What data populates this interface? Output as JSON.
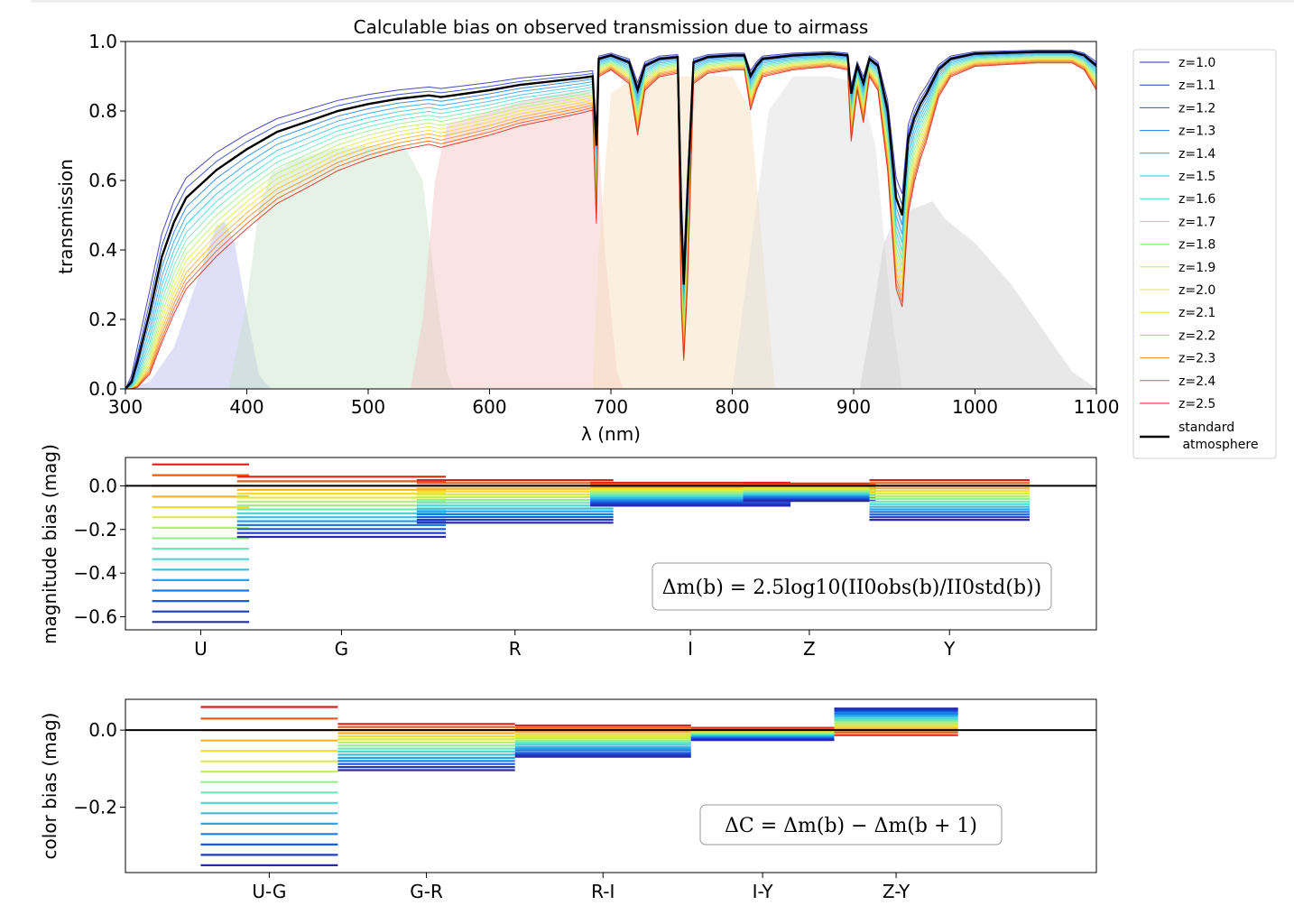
{
  "chart_data": [
    {
      "type": "area",
      "title": "Calculable bias on observed transmission due to airmass",
      "xlabel": "λ (nm)",
      "ylabel": "transmission",
      "xlim": [
        300,
        1100
      ],
      "ylim": [
        0.0,
        1.0
      ],
      "xticks": [
        "300",
        "400",
        "500",
        "600",
        "700",
        "800",
        "900",
        "1000",
        "1100"
      ],
      "yticks": [
        "0.0",
        "0.2",
        "0.4",
        "0.6",
        "0.8",
        "1.0"
      ],
      "grid": false,
      "legend_position": "outside-right",
      "filters": [
        {
          "band": "U",
          "color": "#b9b9f0",
          "points": [
            [
              300,
              0
            ],
            [
              320,
              0.02
            ],
            [
              340,
              0.12
            ],
            [
              360,
              0.32
            ],
            [
              375,
              0.47
            ],
            [
              382,
              0.48
            ],
            [
              390,
              0.42
            ],
            [
              400,
              0.22
            ],
            [
              410,
              0.04
            ],
            [
              420,
              0
            ]
          ]
        },
        {
          "band": "G",
          "color": "#c6e2c6",
          "points": [
            [
              385,
              0
            ],
            [
              400,
              0.25
            ],
            [
              410,
              0.52
            ],
            [
              420,
              0.62
            ],
            [
              440,
              0.66
            ],
            [
              470,
              0.69
            ],
            [
              500,
              0.7
            ],
            [
              530,
              0.7
            ],
            [
              545,
              0.6
            ],
            [
              555,
              0.3
            ],
            [
              565,
              0.05
            ],
            [
              570,
              0
            ]
          ]
        },
        {
          "band": "R",
          "color": "#f5c0c0",
          "points": [
            [
              535,
              0
            ],
            [
              545,
              0.2
            ],
            [
              555,
              0.6
            ],
            [
              565,
              0.76
            ],
            [
              600,
              0.8
            ],
            [
              640,
              0.84
            ],
            [
              680,
              0.86
            ],
            [
              688,
              0.83
            ],
            [
              695,
              0.4
            ],
            [
              705,
              0.05
            ],
            [
              710,
              0
            ]
          ]
        },
        {
          "band": "I",
          "color": "#f7ddb9",
          "points": [
            [
              685,
              0
            ],
            [
              690,
              0.4
            ],
            [
              700,
              0.85
            ],
            [
              720,
              0.9
            ],
            [
              760,
              0.9
            ],
            [
              800,
              0.9
            ],
            [
              815,
              0.8
            ],
            [
              825,
              0.4
            ],
            [
              835,
              0
            ]
          ]
        },
        {
          "band": "Z",
          "color": "#dcdcdc",
          "points": [
            [
              800,
              0
            ],
            [
              815,
              0.4
            ],
            [
              830,
              0.8
            ],
            [
              850,
              0.9
            ],
            [
              880,
              0.9
            ],
            [
              905,
              0.88
            ],
            [
              918,
              0.7
            ],
            [
              930,
              0.25
            ],
            [
              940,
              0
            ]
          ]
        },
        {
          "band": "Y",
          "color": "#cccccc",
          "points": [
            [
              905,
              0
            ],
            [
              915,
              0.2
            ],
            [
              925,
              0.42
            ],
            [
              935,
              0.5
            ],
            [
              950,
              0.52
            ],
            [
              965,
              0.54
            ],
            [
              975,
              0.49
            ],
            [
              1000,
              0.42
            ],
            [
              1030,
              0.3
            ],
            [
              1060,
              0.15
            ],
            [
              1080,
              0.05
            ],
            [
              1100,
              0
            ]
          ]
        }
      ],
      "series": [
        {
          "name": "z=1.0",
          "color": "#2a2aa8"
        },
        {
          "name": "z=1.1",
          "color": "#1c3cc8"
        },
        {
          "name": "z=1.2",
          "color": "#1a5ae0"
        },
        {
          "name": "z=1.3",
          "color": "#1e7ae6"
        },
        {
          "name": "z=1.4",
          "color": "#2a9ee8"
        },
        {
          "name": "z=1.5",
          "color": "#36c0e6"
        },
        {
          "name": "z=1.6",
          "color": "#4ad8d4"
        },
        {
          "name": "z=1.7",
          "color": "#6ee6b6"
        },
        {
          "name": "z=1.8",
          "color": "#96ee8e"
        },
        {
          "name": "z=1.9",
          "color": "#baee66"
        },
        {
          "name": "z=2.0",
          "color": "#dcec46"
        },
        {
          "name": "z=2.1",
          "color": "#f6dc30"
        },
        {
          "name": "z=2.2",
          "color": "#f8b426"
        },
        {
          "name": "z=2.3",
          "color": "#f48820"
        },
        {
          "name": "z=2.4",
          "color": "#ea5a1a"
        },
        {
          "name": "z=2.5",
          "color": "#d82416"
        },
        {
          "name": "standard\n atmosphere",
          "color": "#000000"
        }
      ],
      "atmosphere": {
        "standard_airmass": 1.2,
        "base": [
          [
            300,
            0.0
          ],
          [
            305,
            0.02
          ],
          [
            310,
            0.08
          ],
          [
            320,
            0.22
          ],
          [
            330,
            0.38
          ],
          [
            340,
            0.48
          ],
          [
            350,
            0.55
          ],
          [
            375,
            0.63
          ],
          [
            400,
            0.69
          ],
          [
            425,
            0.74
          ],
          [
            450,
            0.77
          ],
          [
            475,
            0.8
          ],
          [
            500,
            0.82
          ],
          [
            525,
            0.835
          ],
          [
            550,
            0.845
          ],
          [
            560,
            0.84
          ],
          [
            570,
            0.845
          ],
          [
            600,
            0.86
          ],
          [
            625,
            0.875
          ],
          [
            650,
            0.885
          ],
          [
            675,
            0.895
          ],
          [
            685,
            0.9
          ],
          [
            688,
            0.7
          ],
          [
            690,
            0.95
          ],
          [
            700,
            0.96
          ],
          [
            715,
            0.94
          ],
          [
            722,
            0.86
          ],
          [
            728,
            0.93
          ],
          [
            740,
            0.95
          ],
          [
            755,
            0.955
          ],
          [
            758,
            0.5
          ],
          [
            760,
            0.3
          ],
          [
            763,
            0.55
          ],
          [
            768,
            0.94
          ],
          [
            780,
            0.955
          ],
          [
            800,
            0.96
          ],
          [
            810,
            0.96
          ],
          [
            815,
            0.9
          ],
          [
            820,
            0.93
          ],
          [
            825,
            0.95
          ],
          [
            850,
            0.96
          ],
          [
            880,
            0.965
          ],
          [
            895,
            0.96
          ],
          [
            898,
            0.85
          ],
          [
            903,
            0.93
          ],
          [
            908,
            0.88
          ],
          [
            913,
            0.95
          ],
          [
            920,
            0.93
          ],
          [
            928,
            0.8
          ],
          [
            935,
            0.55
          ],
          [
            940,
            0.5
          ],
          [
            945,
            0.72
          ],
          [
            950,
            0.78
          ],
          [
            955,
            0.82
          ],
          [
            960,
            0.85
          ],
          [
            970,
            0.92
          ],
          [
            980,
            0.95
          ],
          [
            1000,
            0.965
          ],
          [
            1050,
            0.97
          ],
          [
            1080,
            0.97
          ],
          [
            1090,
            0.96
          ],
          [
            1100,
            0.93
          ]
        ]
      }
    },
    {
      "type": "bar",
      "ylabel": "magnitude bias (mag)",
      "ylim": [
        -0.66,
        0.13
      ],
      "yticks": [
        "0.0",
        "−0.2",
        "−0.4",
        "−0.6"
      ],
      "categories": [
        "U",
        "G",
        "R",
        "I",
        "Z",
        "Y"
      ],
      "annotation": "Δm(b) = 2.5log10(II0obs(b)/II0std(b))",
      "bands": [
        {
          "band": "U",
          "xrange": [
            322,
            402
          ],
          "values": [
            0.098,
            0.049,
            0.0,
            -0.049,
            -0.098,
            -0.144,
            -0.192,
            -0.24,
            -0.288,
            -0.336,
            -0.384,
            -0.432,
            -0.48,
            -0.528,
            -0.576,
            -0.624
          ]
        },
        {
          "band": "G",
          "xrange": [
            392,
            564
          ],
          "values": [
            0.042,
            0.021,
            0.0,
            -0.018,
            -0.036,
            -0.054,
            -0.072,
            -0.09,
            -0.108,
            -0.126,
            -0.144,
            -0.162,
            -0.18,
            -0.198,
            -0.216,
            -0.234
          ]
        },
        {
          "band": "R",
          "xrange": [
            540,
            702
          ],
          "values": [
            0.026,
            0.013,
            0.0,
            -0.013,
            -0.026,
            -0.039,
            -0.052,
            -0.065,
            -0.078,
            -0.091,
            -0.104,
            -0.117,
            -0.13,
            -0.143,
            -0.156,
            -0.169
          ]
        },
        {
          "band": "I",
          "xrange": [
            683,
            848
          ],
          "values": [
            0.014,
            0.007,
            0.0,
            -0.007,
            -0.014,
            -0.021,
            -0.028,
            -0.035,
            -0.042,
            -0.049,
            -0.056,
            -0.063,
            -0.07,
            -0.077,
            -0.084,
            -0.091
          ]
        },
        {
          "band": "Z",
          "xrange": [
            809,
            918
          ],
          "values": [
            0.011,
            0.005,
            0.0,
            -0.005,
            -0.011,
            -0.016,
            -0.021,
            -0.027,
            -0.032,
            -0.037,
            -0.043,
            -0.048,
            -0.053,
            -0.059,
            -0.064,
            -0.069
          ]
        },
        {
          "band": "Y",
          "xrange": [
            913,
            1045
          ],
          "values": [
            0.026,
            0.013,
            0.0,
            -0.012,
            -0.024,
            -0.036,
            -0.048,
            -0.06,
            -0.072,
            -0.084,
            -0.096,
            -0.108,
            -0.12,
            -0.132,
            -0.144,
            -0.156
          ]
        }
      ]
    },
    {
      "type": "bar",
      "ylabel": "color bias (mag)",
      "ylim": [
        -0.37,
        0.08
      ],
      "yticks": [
        "0.0",
        "−0.2"
      ],
      "categories": [
        "U-G",
        "G-R",
        "R-I",
        "I-Y",
        "Z-Y"
      ],
      "annotation": "ΔC = Δm(b) − Δm(b + 1)",
      "bands": [
        {
          "band": "U-G",
          "xrange": [
            362,
            475
          ],
          "values": [
            0.06,
            0.03,
            0.0,
            -0.027,
            -0.054,
            -0.081,
            -0.108,
            -0.135,
            -0.162,
            -0.189,
            -0.216,
            -0.243,
            -0.27,
            -0.297,
            -0.324,
            -0.351
          ]
        },
        {
          "band": "G-R",
          "xrange": [
            475,
            621
          ],
          "values": [
            0.016,
            0.008,
            0.0,
            -0.008,
            -0.016,
            -0.024,
            -0.032,
            -0.04,
            -0.048,
            -0.056,
            -0.064,
            -0.072,
            -0.08,
            -0.088,
            -0.096,
            -0.104
          ]
        },
        {
          "band": "R-I",
          "xrange": [
            621,
            766
          ],
          "values": [
            0.012,
            0.006,
            0.0,
            -0.005,
            -0.011,
            -0.016,
            -0.021,
            -0.027,
            -0.032,
            -0.037,
            -0.043,
            -0.048,
            -0.053,
            -0.059,
            -0.064,
            -0.069
          ]
        },
        {
          "band": "I-Y",
          "xrange": [
            766,
            884
          ],
          "values": [
            0.006,
            0.003,
            0.0,
            -0.002,
            -0.004,
            -0.006,
            -0.008,
            -0.01,
            -0.012,
            -0.014,
            -0.016,
            -0.018,
            -0.02,
            -0.022,
            -0.024,
            -0.026
          ]
        },
        {
          "band": "Z-Y",
          "xrange": [
            884,
            986
          ],
          "values": [
            -0.013,
            -0.006,
            0.0,
            0.004,
            0.009,
            0.013,
            0.017,
            0.022,
            0.026,
            0.03,
            0.035,
            0.039,
            0.043,
            0.048,
            0.052,
            0.056
          ]
        }
      ]
    }
  ]
}
